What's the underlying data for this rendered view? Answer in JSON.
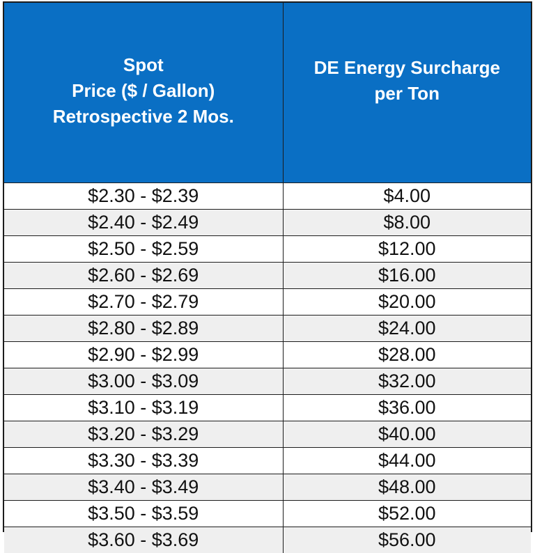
{
  "table": {
    "headers": {
      "spot_price": [
        "Spot",
        "Price ($ / Gallon)",
        "Retrospective 2 Mos."
      ],
      "surcharge": [
        "DE Energy Surcharge",
        "per Ton"
      ]
    },
    "rows": [
      {
        "range": "$2.30 - $2.39",
        "surcharge": "$4.00"
      },
      {
        "range": "$2.40 - $2.49",
        "surcharge": "$8.00"
      },
      {
        "range": "$2.50 - $2.59",
        "surcharge": "$12.00"
      },
      {
        "range": "$2.60 - $2.69",
        "surcharge": "$16.00"
      },
      {
        "range": "$2.70 - $2.79",
        "surcharge": "$20.00"
      },
      {
        "range": "$2.80 - $2.89",
        "surcharge": "$24.00"
      },
      {
        "range": "$2.90 - $2.99",
        "surcharge": "$28.00"
      },
      {
        "range": "$3.00 - $3.09",
        "surcharge": "$32.00"
      },
      {
        "range": "$3.10 - $3.19",
        "surcharge": "$36.00"
      },
      {
        "range": "$3.20 - $3.29",
        "surcharge": "$40.00"
      },
      {
        "range": "$3.30 - $3.39",
        "surcharge": "$44.00"
      },
      {
        "range": "$3.40 - $3.49",
        "surcharge": "$48.00"
      },
      {
        "range": "$3.50 - $3.59",
        "surcharge": "$52.00"
      },
      {
        "range": "$3.60 - $3.69",
        "surcharge": "$56.00"
      }
    ]
  },
  "colors": {
    "header_bg": "#0a6fc4",
    "header_text": "#ffffff",
    "row_alt": "#efefef",
    "border": "#1c1c1c"
  }
}
